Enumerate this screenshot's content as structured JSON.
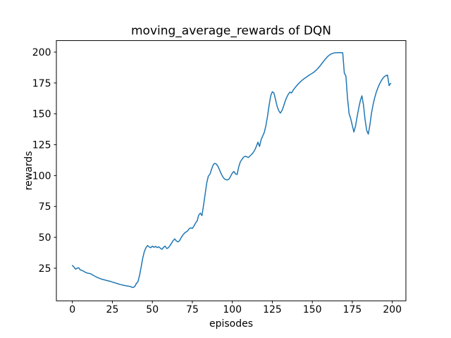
{
  "figure": {
    "background": "#ffffff",
    "text_color": "#000000"
  },
  "chart_data": {
    "type": "line",
    "title": "moving_average_rewards of DQN",
    "xlabel": "episodes",
    "ylabel": "rewards",
    "grid": false,
    "legend": "none",
    "x_ticks": [
      0,
      25,
      50,
      75,
      100,
      125,
      150,
      175,
      200
    ],
    "y_ticks": [
      25,
      50,
      75,
      100,
      125,
      150,
      175,
      200
    ],
    "xlim": [
      -10.0,
      208.5
    ],
    "ylim": [
      -1.4,
      209.35
    ],
    "series": [
      {
        "name": "moving_average_rewards",
        "color": "#1f77b4",
        "x_start": 0,
        "x_step": 1,
        "values": [
          27.2,
          26.0,
          24.2,
          25.1,
          25.3,
          23.6,
          23.2,
          22.6,
          21.8,
          21.2,
          20.9,
          20.7,
          20.1,
          19.3,
          18.6,
          17.9,
          17.3,
          16.8,
          16.3,
          15.9,
          15.6,
          15.2,
          14.9,
          14.6,
          14.2,
          13.8,
          13.4,
          13.0,
          12.6,
          12.2,
          11.8,
          11.5,
          11.2,
          10.9,
          10.7,
          10.5,
          10.3,
          9.7,
          9.4,
          10.2,
          12.6,
          14.1,
          19.2,
          26.0,
          33.2,
          38.6,
          41.6,
          43.4,
          42.2,
          41.6,
          42.9,
          41.9,
          42.7,
          41.7,
          42.4,
          41.2,
          40.3,
          41.9,
          42.9,
          40.9,
          41.6,
          43.3,
          45.3,
          47.4,
          48.7,
          47.1,
          46.3,
          47.3,
          49.7,
          51.7,
          53.3,
          54.3,
          55.1,
          56.9,
          57.7,
          57.3,
          59.1,
          61.6,
          63.3,
          68.1,
          69.6,
          67.6,
          76.0,
          85.0,
          94.0,
          99.6,
          101.1,
          105.1,
          108.6,
          109.9,
          109.4,
          107.6,
          104.6,
          101.6,
          99.1,
          97.4,
          96.7,
          96.5,
          97.3,
          99.6,
          102.1,
          103.3,
          101.3,
          100.9,
          107.1,
          111.1,
          113.1,
          114.9,
          115.6,
          115.3,
          114.6,
          115.9,
          117.1,
          118.6,
          120.6,
          123.6,
          127.1,
          123.6,
          129.1,
          132.1,
          135.1,
          140.6,
          148.1,
          157.1,
          164.6,
          167.9,
          166.9,
          161.6,
          156.1,
          152.6,
          150.6,
          152.6,
          156.1,
          160.1,
          163.4,
          165.9,
          167.6,
          166.9,
          169.1,
          170.9,
          172.4,
          173.9,
          175.3,
          176.5,
          177.6,
          178.6,
          179.5,
          180.4,
          181.3,
          182.1,
          182.9,
          183.8,
          184.9,
          186.1,
          187.6,
          189.1,
          190.8,
          192.5,
          194.1,
          195.6,
          196.9,
          197.9,
          198.6,
          199.1,
          199.4,
          199.5,
          199.6,
          199.6,
          199.6,
          199.4,
          183.1,
          180.6,
          162.6,
          150.1,
          146.1,
          140.6,
          135.3,
          140.1,
          147.6,
          154.6,
          160.6,
          164.6,
          157.1,
          145.1,
          136.6,
          133.6,
          141.1,
          150.6,
          157.6,
          163.1,
          167.6,
          171.1,
          174.1,
          176.6,
          178.6,
          180.1,
          180.9,
          181.4,
          172.9,
          174.7
        ]
      }
    ]
  }
}
